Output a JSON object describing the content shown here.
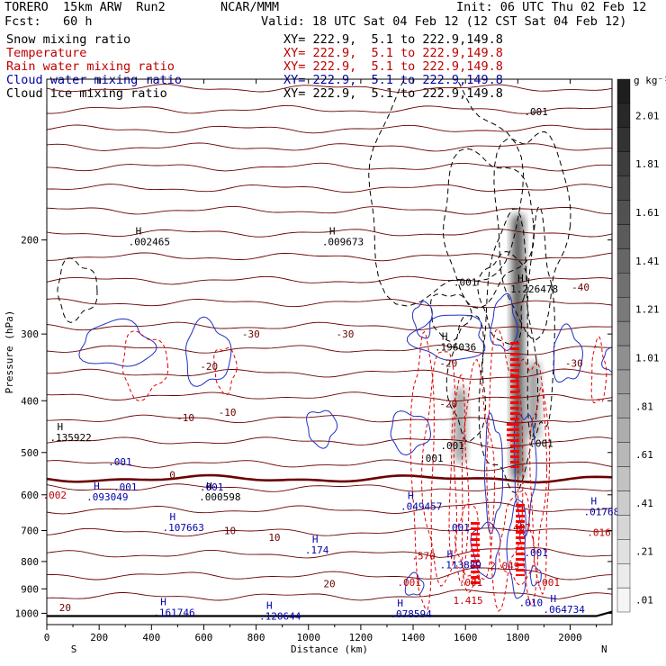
{
  "header": {
    "model": "TORERO  15km ARW  Run2",
    "org": "NCAR/MMM",
    "init": "Init: 06 UTC Thu 02 Feb 12",
    "fcst": "Fcst:   60 h",
    "valid": "Valid: 18 UTC Sat 04 Feb 12 (12 CST Sat 04 Feb 12)"
  },
  "fields": [
    {
      "name": "Snow mixing ratio",
      "range": "XY= 222.9,  5.1 to 222.9,149.8",
      "color": "#000000"
    },
    {
      "name": "Temperature",
      "range": "XY= 222.9,  5.1 to 222.9,149.8",
      "color": "#c00000"
    },
    {
      "name": "Rain water mixing ratio",
      "range": "XY= 222.9,  5.1 to 222.9,149.8",
      "color": "#c00000"
    },
    {
      "name": "Cloud water mixing ratio",
      "range": "XY= 222.9,  5.1 to 222.9,149.8",
      "color": "#0000aa"
    },
    {
      "name": "Cloud ice mixing ratio",
      "range": "XY= 222.9,  5.1 to 222.9,149.8",
      "color": "#000000"
    }
  ],
  "colorbar": {
    "unit": "g kg⁻¹",
    "ticks": [
      ".01",
      ".21",
      ".41",
      ".61",
      ".81",
      "1.01",
      "1.21",
      "1.41",
      "1.61",
      "1.81",
      "2.01"
    ]
  },
  "end_labels": {
    "left": "S",
    "right": "N"
  },
  "chart_data": {
    "type": "cross-section contour",
    "xlabel": "Distance (km)",
    "ylabel": "Pressure (hPa)",
    "xlim": [
      0,
      2160
    ],
    "ylim": [
      1050,
      100
    ],
    "x_ticks": [
      0,
      200,
      400,
      600,
      800,
      1000,
      1200,
      1400,
      1600,
      1800,
      2000
    ],
    "y_ticks": [
      200,
      300,
      400,
      500,
      600,
      700,
      800,
      900,
      1000
    ],
    "temperature_contour_labels": [
      {
        "x": 780,
        "p": 300,
        "t": "-30"
      },
      {
        "x": 1140,
        "p": 300,
        "t": "-30"
      },
      {
        "x": 1535,
        "p": 340,
        "t": "-20"
      },
      {
        "x": 620,
        "p": 345,
        "t": "-20"
      },
      {
        "x": 530,
        "p": 430,
        "t": "-10"
      },
      {
        "x": 690,
        "p": 420,
        "t": "-10"
      },
      {
        "x": 2040,
        "p": 245,
        "t": "-40"
      },
      {
        "x": 2015,
        "p": 340,
        "t": "-30"
      },
      {
        "x": 1535,
        "p": 405,
        "t": "-20"
      },
      {
        "x": 480,
        "p": 550,
        "t": "0"
      },
      {
        "x": 700,
        "p": 700,
        "t": "10"
      },
      {
        "x": 870,
        "p": 720,
        "t": "10"
      },
      {
        "x": 1080,
        "p": 880,
        "t": "20"
      },
      {
        "x": 70,
        "p": 975,
        "t": "20"
      }
    ],
    "maxima_labels": [
      {
        "x": 360,
        "p": 200,
        "t": ".002465",
        "color": "#000000"
      },
      {
        "x": 1100,
        "p": 200,
        "t": ".009673",
        "color": "#000000"
      },
      {
        "x": 1820,
        "p": 245,
        "t": "1.226478",
        "color": "#000000"
      },
      {
        "x": 1530,
        "p": 315,
        "t": ".196036",
        "color": "#000000"
      },
      {
        "x": 60,
        "p": 465,
        "t": ".135922",
        "color": "#000000"
      },
      {
        "x": 200,
        "p": 600,
        "t": ".093049",
        "color": "#0000aa"
      },
      {
        "x": 630,
        "p": 600,
        "t": ".000598",
        "color": "#000000"
      },
      {
        "x": 490,
        "p": 685,
        "t": ".107663",
        "color": "#0000aa"
      },
      {
        "x": 1400,
        "p": 625,
        "t": ".049457",
        "color": "#0000aa"
      },
      {
        "x": 1035,
        "p": 755,
        "t": ".174",
        "color": "#0000aa"
      },
      {
        "x": 1550,
        "p": 805,
        "t": ".113889",
        "color": "#0000aa"
      },
      {
        "x": 2100,
        "p": 640,
        "t": ".01768",
        "color": "#0000aa"
      },
      {
        "x": 455,
        "p": 988,
        "t": ".161746",
        "color": "#0000aa"
      },
      {
        "x": 860,
        "p": 1005,
        "t": ".120644",
        "color": "#0000aa"
      },
      {
        "x": 1360,
        "p": 995,
        "t": ".078594",
        "color": "#0000aa"
      },
      {
        "x": 1945,
        "p": 975,
        "t": ".064734",
        "color": "#0000aa"
      }
    ],
    "value_labels": [
      {
        "x": 1600,
        "p": 240,
        "t": ".001",
        "color": "#000000"
      },
      {
        "x": 1870,
        "p": 115,
        "t": ".001",
        "color": "#000000"
      },
      {
        "x": 1890,
        "p": 480,
        "t": ".001",
        "color": "#000000"
      },
      {
        "x": 1550,
        "p": 485,
        "t": ".001",
        "color": "#000000"
      },
      {
        "x": 1470,
        "p": 512,
        "t": ".001",
        "color": "#000000"
      },
      {
        "x": 280,
        "p": 520,
        "t": ".001",
        "color": "#0000aa"
      },
      {
        "x": 300,
        "p": 580,
        "t": ".001",
        "color": "#0000aa"
      },
      {
        "x": 630,
        "p": 580,
        "t": ".001",
        "color": "#0000aa"
      },
      {
        "x": 30,
        "p": 600,
        "t": ".002",
        "color": "#c00000"
      },
      {
        "x": 1570,
        "p": 690,
        "t": ".001",
        "color": "#0000aa"
      },
      {
        "x": 1805,
        "p": 690,
        "t": ".401",
        "color": "#c00000"
      },
      {
        "x": 1440,
        "p": 780,
        "t": ".570",
        "color": "#c00000"
      },
      {
        "x": 1750,
        "p": 815,
        "t": "2.049",
        "color": "#c00000"
      },
      {
        "x": 1870,
        "p": 770,
        "t": ".001",
        "color": "#0000aa"
      },
      {
        "x": 1385,
        "p": 875,
        "t": ".001",
        "color": "#c00000"
      },
      {
        "x": 1620,
        "p": 875,
        "t": ".001",
        "color": "#c00000"
      },
      {
        "x": 1915,
        "p": 875,
        "t": ".001",
        "color": "#c00000"
      },
      {
        "x": 1610,
        "p": 945,
        "t": "1.415",
        "color": "#c00000"
      },
      {
        "x": 1850,
        "p": 955,
        "t": ".010",
        "color": "#0000aa"
      },
      {
        "x": 2110,
        "p": 705,
        "t": ".016",
        "color": "#c00000"
      }
    ]
  }
}
